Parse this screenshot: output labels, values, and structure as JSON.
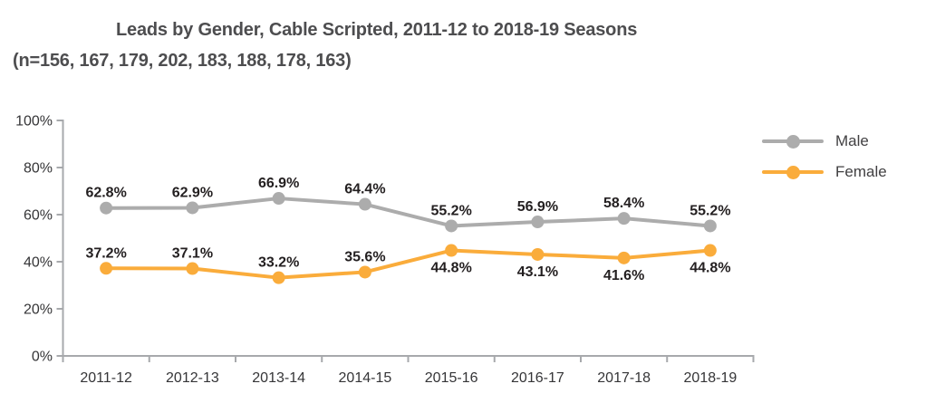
{
  "header": {
    "title": "Leads by Gender, Cable Scripted, 2011-12 to 2018-19 Seasons",
    "subtitle": "(n=156, 167, 179, 202, 183, 188, 178, 163)"
  },
  "legend": {
    "items": [
      {
        "label": "Male",
        "color": "#ACACAC"
      },
      {
        "label": "Female",
        "color": "#FAAC3B"
      }
    ]
  },
  "chart_data": {
    "type": "line",
    "title": "Leads by Gender, Cable Scripted, 2011-12 to 2018-19 Seasons",
    "subtitle": "(n=156, 167, 179, 202, 183, 188, 178, 163)",
    "categories": [
      "2011-12",
      "2012-13",
      "2013-14",
      "2014-15",
      "2015-16",
      "2016-17",
      "2017-18",
      "2018-19"
    ],
    "series": [
      {
        "name": "Male",
        "color": "#ACACAC",
        "values": [
          62.8,
          62.9,
          66.9,
          64.4,
          55.2,
          56.9,
          58.4,
          55.2
        ],
        "data_labels": [
          "62.8%",
          "62.9%",
          "66.9%",
          "64.4%",
          "55.2%",
          "56.9%",
          "58.4%",
          "55.2%"
        ],
        "label_positions": [
          "above",
          "above",
          "above",
          "above",
          "above",
          "above",
          "above",
          "above"
        ]
      },
      {
        "name": "Female",
        "color": "#FAAC3B",
        "values": [
          37.2,
          37.1,
          33.2,
          35.6,
          44.8,
          43.1,
          41.6,
          44.8
        ],
        "data_labels": [
          "37.2%",
          "37.1%",
          "33.2%",
          "35.6%",
          "44.8%",
          "43.1%",
          "41.6%",
          "44.8%"
        ],
        "label_positions": [
          "above",
          "above",
          "above",
          "above",
          "below",
          "below",
          "below",
          "below"
        ]
      }
    ],
    "xlabel": "",
    "ylabel": "",
    "ylim": [
      0,
      100
    ],
    "y_tick_labels": [
      "0%",
      "20%",
      "40%",
      "60%",
      "80%",
      "100%"
    ],
    "y_tick_values": [
      0,
      20,
      40,
      60,
      80,
      100
    ],
    "grid": false,
    "legend_position": "right",
    "axis_color": "#A7A9AC",
    "data_label_color": "#231F20",
    "tick_label_color": "#353537"
  }
}
